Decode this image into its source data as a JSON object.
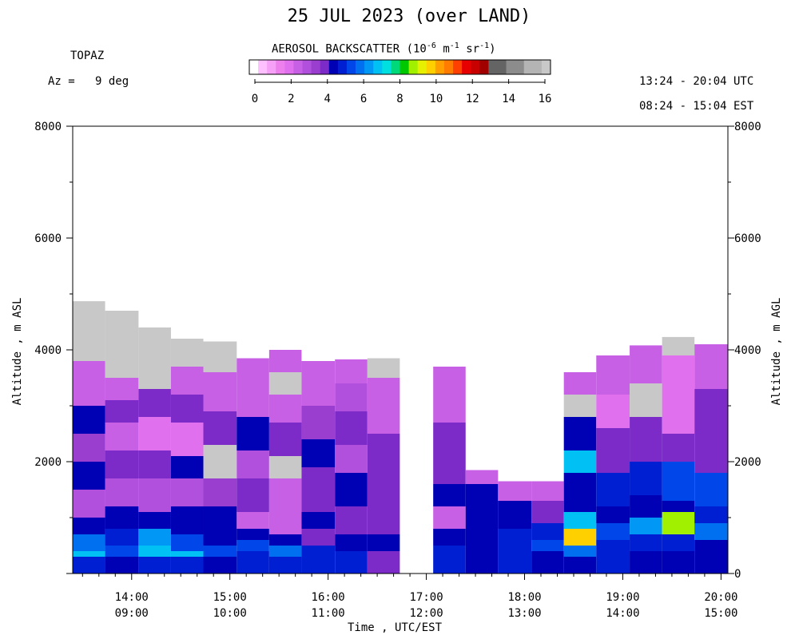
{
  "chart_data": {
    "type": "heatmap",
    "title": "25 JUL 2023 (over LAND)",
    "station": "TOPAZ",
    "azimuth_label": "Az =   9 deg",
    "time_range_utc": "13:24 - 20:04 UTC",
    "time_range_est": "08:24 - 15:04 EST",
    "colorbar": {
      "title_prefix": "AEROSOL BACKSCATTER (10",
      "title_exp1": "-6",
      "title_mid1": " m",
      "title_exp2": "-1",
      "title_mid2": " sr",
      "title_exp3": "-1",
      "title_suffix": ")",
      "ticks": [
        "0",
        "2",
        "4",
        "6",
        "8",
        "10",
        "12",
        "14",
        "16"
      ],
      "range": [
        0,
        16
      ],
      "colors": [
        "#ffffff",
        "#ffc0ff",
        "#f7a0f7",
        "#ee80ee",
        "#e070ee",
        "#c860e6",
        "#b050dc",
        "#9a3ed0",
        "#7c2ac8",
        "#0000b4",
        "#001ed2",
        "#0046e8",
        "#0070f0",
        "#0098f4",
        "#00c0f4",
        "#00e0e0",
        "#00d87c",
        "#00c800",
        "#a0f000",
        "#e6f000",
        "#ffd000",
        "#ffa000",
        "#ff7c00",
        "#ff4000",
        "#e60000",
        "#c80000",
        "#a00000",
        "#646464",
        "#646464",
        "#8c8c8c",
        "#8c8c8c",
        "#b4b4b4",
        "#b4b4b4",
        "#c8c8c8"
      ]
    },
    "x_axis": {
      "title": "Time , UTC/EST",
      "range_utc_hours": [
        13.4,
        20.07
      ],
      "ticks": [
        {
          "utc": "14:00",
          "est": "09:00",
          "hour": 14
        },
        {
          "utc": "15:00",
          "est": "10:00",
          "hour": 15
        },
        {
          "utc": "16:00",
          "est": "11:00",
          "hour": 16
        },
        {
          "utc": "17:00",
          "est": "12:00",
          "hour": 17
        },
        {
          "utc": "18:00",
          "est": "13:00",
          "hour": 18
        },
        {
          "utc": "19:00",
          "est": "14:00",
          "hour": 19
        },
        {
          "utc": "20:00",
          "est": "15:00",
          "hour": 20
        }
      ]
    },
    "y_left": {
      "label": "Altitude , m ASL",
      "range": [
        0,
        8000
      ],
      "ticks": [
        "0",
        "2000",
        "4000",
        "6000",
        "8000"
      ],
      "tick_values": [
        0,
        2000,
        4000,
        6000,
        8000
      ]
    },
    "y_right": {
      "label": "Altitude , m AGL",
      "range": [
        0,
        8000
      ],
      "ticks": [
        "0",
        "2000",
        "4000",
        "6000",
        "8000"
      ],
      "tick_values": [
        0,
        2000,
        4000,
        6000,
        8000
      ]
    },
    "data_floor_m": 0,
    "profiles": [
      {
        "start": 13.4,
        "end": 13.73,
        "top": 4870,
        "layers": [
          [
            4870,
            16.8
          ],
          [
            4350,
            16.8
          ],
          [
            3800,
            2.8
          ],
          [
            3250,
            2.4
          ],
          [
            3000,
            4.5
          ],
          [
            2500,
            3.6
          ],
          [
            2000,
            4.5
          ],
          [
            1500,
            3
          ],
          [
            1000,
            4.4
          ],
          [
            700,
            5.8
          ],
          [
            400,
            6.6
          ],
          [
            300,
            4.9
          ]
        ]
      },
      {
        "start": 13.73,
        "end": 14.07,
        "top": 4700,
        "layers": [
          [
            4700,
            16.8
          ],
          [
            4200,
            16.9
          ],
          [
            3500,
            2.6
          ],
          [
            3100,
            3.8
          ],
          [
            2700,
            2.4
          ],
          [
            2200,
            4.0
          ],
          [
            1700,
            3.0
          ],
          [
            1200,
            4.3
          ],
          [
            800,
            4.8
          ],
          [
            500,
            5.4
          ],
          [
            300,
            4.7
          ]
        ]
      },
      {
        "start": 14.07,
        "end": 14.4,
        "top": 4400,
        "layers": [
          [
            4400,
            16.8
          ],
          [
            3900,
            16.7
          ],
          [
            3300,
            3.8
          ],
          [
            2800,
            2.3
          ],
          [
            2200,
            4.0
          ],
          [
            1700,
            3.2
          ],
          [
            1100,
            4.5
          ],
          [
            800,
            6.4
          ],
          [
            500,
            6.7
          ],
          [
            300,
            4.9
          ]
        ]
      },
      {
        "start": 14.4,
        "end": 14.73,
        "top": 4200,
        "layers": [
          [
            4200,
            16.8
          ],
          [
            3700,
            2.8
          ],
          [
            3200,
            3.8
          ],
          [
            2700,
            2.0
          ],
          [
            2100,
            4.5
          ],
          [
            1700,
            3.0
          ],
          [
            1200,
            4.6
          ],
          [
            700,
            5.4
          ],
          [
            400,
            6.7
          ],
          [
            300,
            4.9
          ]
        ]
      },
      {
        "start": 14.73,
        "end": 15.07,
        "top": 4150,
        "layers": [
          [
            4150,
            16.8
          ],
          [
            3600,
            2.6
          ],
          [
            2900,
            3.8
          ],
          [
            2300,
            16.8
          ],
          [
            1700,
            3.6
          ],
          [
            1200,
            4.3
          ],
          [
            800,
            4.6
          ],
          [
            500,
            5.3
          ],
          [
            300,
            4.7
          ]
        ]
      },
      {
        "start": 15.07,
        "end": 15.4,
        "top": 3850,
        "layers": [
          [
            3850,
            2.4
          ],
          [
            3300,
            2.8
          ],
          [
            2800,
            4.3
          ],
          [
            2200,
            3.0
          ],
          [
            1700,
            3.9
          ],
          [
            1100,
            2.8
          ],
          [
            800,
            4.6
          ],
          [
            600,
            5.6
          ],
          [
            400,
            5.0
          ]
        ]
      },
      {
        "start": 15.4,
        "end": 15.73,
        "top": 4000,
        "layers": [
          [
            4000,
            2.5
          ],
          [
            3600,
            16.8
          ],
          [
            3200,
            2.4
          ],
          [
            2700,
            4.1
          ],
          [
            2100,
            16.8
          ],
          [
            1700,
            2.8
          ],
          [
            1100,
            2.5
          ],
          [
            700,
            4.6
          ],
          [
            500,
            5.7
          ],
          [
            300,
            4.8
          ]
        ]
      },
      {
        "start": 15.73,
        "end": 16.07,
        "top": 3800,
        "layers": [
          [
            3800,
            2.4
          ],
          [
            3400,
            2.8
          ],
          [
            3000,
            3.7
          ],
          [
            2400,
            4.6
          ],
          [
            1900,
            3.9
          ],
          [
            1400,
            3.8
          ],
          [
            1100,
            4.3
          ],
          [
            800,
            3.9
          ],
          [
            500,
            4.8
          ]
        ]
      },
      {
        "start": 16.07,
        "end": 16.4,
        "top": 3830,
        "layers": [
          [
            3830,
            2.4
          ],
          [
            3400,
            3.0
          ],
          [
            2900,
            4.2
          ],
          [
            2300,
            3.0
          ],
          [
            1800,
            4.4
          ],
          [
            1200,
            4.1
          ],
          [
            700,
            4.6
          ],
          [
            400,
            4.8
          ]
        ]
      },
      {
        "start": 16.4,
        "end": 16.73,
        "top": 3850,
        "layers": [
          [
            3850,
            16.8
          ],
          [
            3500,
            2.4
          ],
          [
            2500,
            4.2
          ],
          [
            1900,
            3.9
          ],
          [
            1300,
            3.8
          ],
          [
            700,
            4.5
          ],
          [
            400,
            4.2
          ]
        ]
      },
      {
        "start": 17.07,
        "end": 17.4,
        "top": 3700,
        "layers": [
          [
            3700,
            2.6
          ],
          [
            2700,
            4.2
          ],
          [
            2200,
            3.9
          ],
          [
            1600,
            4.3
          ],
          [
            1200,
            2.8
          ],
          [
            800,
            4.4
          ],
          [
            500,
            4.8
          ]
        ]
      },
      {
        "start": 17.4,
        "end": 17.73,
        "top": 1850,
        "layers": [
          [
            1850,
            2.6
          ],
          [
            1600,
            4.4
          ],
          [
            1100,
            4.6
          ],
          [
            600,
            4.3
          ]
        ]
      },
      {
        "start": 17.73,
        "end": 18.07,
        "top": 1650,
        "layers": [
          [
            1650,
            2.8
          ],
          [
            1300,
            4.5
          ],
          [
            800,
            4.8
          ],
          [
            500,
            4.9
          ]
        ]
      },
      {
        "start": 18.07,
        "end": 18.4,
        "top": 1650,
        "layers": [
          [
            1650,
            2.8
          ],
          [
            1300,
            4.1
          ],
          [
            900,
            4.9
          ],
          [
            600,
            5.3
          ],
          [
            400,
            4.5
          ]
        ]
      },
      {
        "start": 18.4,
        "end": 18.73,
        "top": 3600,
        "layers": [
          [
            3600,
            2.6
          ],
          [
            3200,
            16.8
          ],
          [
            2800,
            4.4
          ],
          [
            2200,
            6.6
          ],
          [
            1800,
            4.6
          ],
          [
            1100,
            7.0
          ],
          [
            800,
            9.5
          ],
          [
            500,
            5.8
          ],
          [
            300,
            4.7
          ]
        ]
      },
      {
        "start": 18.73,
        "end": 19.07,
        "top": 3900,
        "layers": [
          [
            3900,
            2.6
          ],
          [
            3200,
            2.2
          ],
          [
            2600,
            4.0
          ],
          [
            1800,
            4.9
          ],
          [
            1200,
            4.4
          ],
          [
            900,
            5.5
          ],
          [
            600,
            4.9
          ]
        ]
      },
      {
        "start": 19.07,
        "end": 19.4,
        "top": 4080,
        "layers": [
          [
            4080,
            2.4
          ],
          [
            3400,
            16.8
          ],
          [
            2800,
            4.0
          ],
          [
            2000,
            4.9
          ],
          [
            1400,
            4.3
          ],
          [
            1000,
            6.5
          ],
          [
            700,
            4.9
          ],
          [
            400,
            4.6
          ]
        ]
      },
      {
        "start": 19.4,
        "end": 19.73,
        "top": 4230,
        "layers": [
          [
            4230,
            16.8
          ],
          [
            3900,
            2.2
          ],
          [
            2500,
            4.2
          ],
          [
            2000,
            5.3
          ],
          [
            1300,
            4.6
          ],
          [
            1100,
            8.5
          ],
          [
            700,
            5.0
          ],
          [
            400,
            4.4
          ]
        ]
      },
      {
        "start": 19.73,
        "end": 20.07,
        "top": 4100,
        "layers": [
          [
            4100,
            2.4
          ],
          [
            3300,
            4.2
          ],
          [
            2200,
            3.9
          ],
          [
            1800,
            5.3
          ],
          [
            1200,
            4.9
          ],
          [
            900,
            5.8
          ],
          [
            600,
            4.6
          ]
        ]
      }
    ]
  }
}
